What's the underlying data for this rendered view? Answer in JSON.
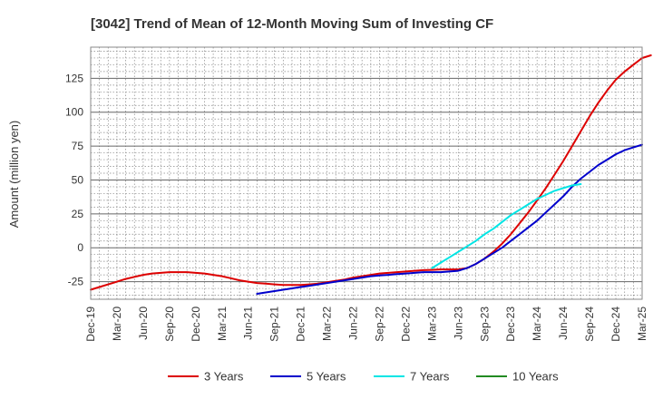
{
  "chart_data": {
    "type": "line",
    "title": "[3042]  Trend of Mean of 12-Month Moving Sum of Investing CF",
    "xlabel": "",
    "ylabel": "Amount (million yen)",
    "ylim": [
      -38,
      148
    ],
    "yticks": [
      -25,
      0,
      25,
      50,
      75,
      100,
      125
    ],
    "xtick_labels": [
      "Dec-19",
      "Mar-20",
      "Jun-20",
      "Sep-20",
      "Dec-20",
      "Mar-21",
      "Jun-21",
      "Sep-21",
      "Dec-21",
      "Mar-22",
      "Jun-22",
      "Sep-22",
      "Dec-22",
      "Mar-23",
      "Jun-23",
      "Sep-23",
      "Dec-23",
      "Mar-24",
      "Jun-24",
      "Sep-24",
      "Dec-24",
      "Mar-25"
    ],
    "grid": true,
    "legend_position": "bottom",
    "series": [
      {
        "name": "3 Years",
        "color": "#dd0000",
        "start_index": 0,
        "values": [
          -31,
          -29,
          -27,
          -25,
          -23,
          -21.5,
          -20,
          -19,
          -18.5,
          -18,
          -18,
          -18,
          -18.5,
          -19,
          -20,
          -21,
          -22.5,
          -24,
          -25,
          -26,
          -26.5,
          -27,
          -27.5,
          -27.5,
          -27.5,
          -27,
          -26.5,
          -25.5,
          -24.5,
          -23.5,
          -22,
          -21,
          -20,
          -19,
          -18.5,
          -18,
          -17.5,
          -17,
          -16.5,
          -16.3,
          -16,
          -16,
          -16,
          -15,
          -12,
          -8,
          -3,
          3,
          10,
          18,
          26,
          35,
          44,
          54,
          64,
          75,
          86,
          97,
          107,
          116,
          124,
          130,
          135,
          140,
          142
        ]
      },
      {
        "name": "5 Years",
        "color": "#0000cc",
        "start_index": 19,
        "values": [
          -34,
          -33,
          -32,
          -31,
          -30,
          -29,
          -28,
          -27,
          -26,
          -25,
          -24,
          -23,
          -22,
          -21,
          -20.5,
          -20,
          -19.5,
          -19,
          -18.5,
          -18,
          -18,
          -18,
          -17.5,
          -17,
          -15,
          -12,
          -8,
          -4,
          0,
          5,
          10,
          15,
          20,
          26,
          32,
          38,
          45,
          51,
          56,
          61,
          65,
          69,
          72,
          74,
          76
        ]
      },
      {
        "name": "7 Years",
        "color": "#00e5e5",
        "start_index": 39,
        "values": [
          -15,
          -11,
          -7,
          -3,
          1,
          5,
          10,
          14,
          19,
          24,
          28,
          32,
          36,
          39,
          42,
          44,
          46,
          47
        ]
      },
      {
        "name": "10 Years",
        "color": "#228b22",
        "start_index": 0,
        "values": []
      }
    ]
  }
}
